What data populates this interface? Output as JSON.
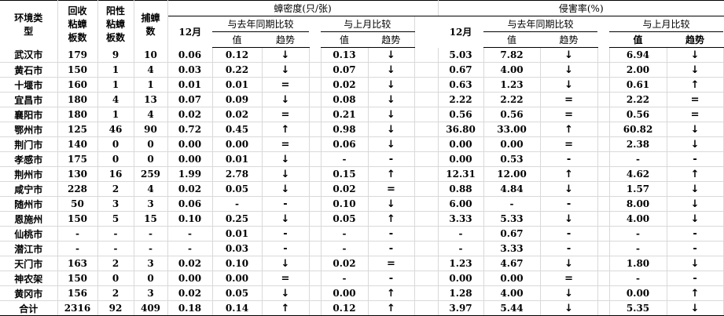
{
  "header": {
    "col_region": "环境类型",
    "col_boards": "回收粘蟑板数",
    "col_positive": "阳性粘蟑板数",
    "col_caught": "捕蟑数",
    "density": "蟑密度(只/张)",
    "infestation": "侵害率(%)",
    "month": "12月",
    "vs_last_year": "与去年同期比较",
    "vs_last_month": "与上月比较",
    "value": "值",
    "trend": "趋势"
  },
  "rows": [
    [
      "武汉市",
      "179",
      "9",
      "10",
      "0.06",
      "0.12",
      "↓",
      "0.13",
      "↓",
      "5.03",
      "7.82",
      "↓",
      "6.94",
      "↓"
    ],
    [
      "黄石市",
      "150",
      "1",
      "4",
      "0.03",
      "0.22",
      "↓",
      "0.07",
      "↓",
      "0.67",
      "4.00",
      "↓",
      "2.00",
      "↓"
    ],
    [
      "十堰市",
      "160",
      "1",
      "1",
      "0.01",
      "0.01",
      "=",
      "0.02",
      "↓",
      "0.63",
      "1.23",
      "↓",
      "0.61",
      "↑"
    ],
    [
      "宜昌市",
      "180",
      "4",
      "13",
      "0.07",
      "0.09",
      "↓",
      "0.08",
      "↓",
      "2.22",
      "2.22",
      "=",
      "2.22",
      "="
    ],
    [
      "襄阳市",
      "180",
      "1",
      "4",
      "0.02",
      "0.02",
      "=",
      "0.21",
      "↓",
      "0.56",
      "0.56",
      "=",
      "0.56",
      "="
    ],
    [
      "鄂州市",
      "125",
      "46",
      "90",
      "0.72",
      "0.45",
      "↑",
      "0.98",
      "↓",
      "36.80",
      "33.00",
      "↑",
      "60.82",
      "↓"
    ],
    [
      "荆门市",
      "140",
      "0",
      "0",
      "0.00",
      "0.00",
      "=",
      "0.06",
      "↓",
      "0.00",
      "0.00",
      "=",
      "2.38",
      "↓"
    ],
    [
      "孝感市",
      "175",
      "0",
      "0",
      "0.00",
      "0.01",
      "↓",
      "-",
      "-",
      "0.00",
      "0.53",
      "-",
      "-",
      "-"
    ],
    [
      "荆州市",
      "130",
      "16",
      "259",
      "1.99",
      "2.78",
      "↓",
      "0.15",
      "↑",
      "12.31",
      "12.00",
      "↑",
      "4.62",
      "↑"
    ],
    [
      "咸宁市",
      "228",
      "2",
      "4",
      "0.02",
      "0.05",
      "↓",
      "0.02",
      "=",
      "0.88",
      "4.84",
      "↓",
      "1.57",
      "↓"
    ],
    [
      "随州市",
      "50",
      "3",
      "3",
      "0.06",
      "-",
      "-",
      "0.10",
      "↓",
      "6.00",
      "-",
      "-",
      "8.00",
      "↓"
    ],
    [
      "恩施州",
      "150",
      "5",
      "15",
      "0.10",
      "0.25",
      "↓",
      "0.05",
      "↑",
      "3.33",
      "5.33",
      "↓",
      "4.00",
      "↓"
    ],
    [
      "仙桃市",
      "-",
      "-",
      "-",
      "-",
      "0.01",
      "-",
      "-",
      "-",
      "-",
      "0.67",
      "-",
      "-",
      "-"
    ],
    [
      "潜江市",
      "-",
      "-",
      "-",
      "-",
      "0.03",
      "-",
      "-",
      "-",
      "-",
      "3.33",
      "-",
      "-",
      "-"
    ],
    [
      "天门市",
      "163",
      "2",
      "3",
      "0.02",
      "0.10",
      "↓",
      "0.02",
      "=",
      "1.23",
      "4.67",
      "↓",
      "1.80",
      "↓"
    ],
    [
      "神农架",
      "150",
      "0",
      "0",
      "0.00",
      "0.00",
      "=",
      "-",
      "-",
      "0.00",
      "0.00",
      "=",
      "-",
      "-"
    ],
    [
      "黄冈市",
      "156",
      "2",
      "3",
      "0.02",
      "0.05",
      "↓",
      "0.00",
      "↑",
      "1.28",
      "4.00",
      "↓",
      "0.00",
      "↑"
    ]
  ],
  "total": [
    "合计",
    "2316",
    "92",
    "409",
    "0.18",
    "0.14",
    "↑",
    "0.12",
    "↑",
    "3.97",
    "5.44",
    "↓",
    "5.35",
    "↓"
  ]
}
